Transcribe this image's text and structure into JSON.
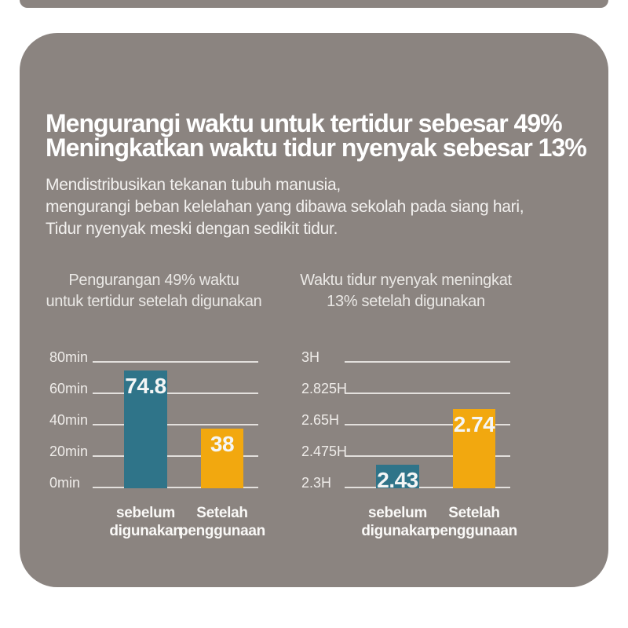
{
  "header": {
    "title_lines": [
      "Mengurangi waktu untuk tertidur sebesar 49%",
      "Meningkatkan waktu tidur nyenyak sebesar 13%"
    ],
    "subtitle_lines": [
      "Mendistribusikan tekanan tubuh manusia,",
      "mengurangi beban kelelahan yang dibawa sekolah pada siang hari,",
      "Tidur nyenyak meski dengan sedikit tidur."
    ]
  },
  "colors": {
    "card_background": "#8b8480",
    "before_bar": "#2f7489",
    "after_bar": "#f2a80f",
    "gridline": "#e3e0dd",
    "text": "#ffffff"
  },
  "chart_data": [
    {
      "type": "bar",
      "title": "Pengurangan 49% waktu untuk tertidur setelah digunakan",
      "title_lines": [
        "Pengurangan 49% waktu",
        "untuk tertidur setelah digunakan"
      ],
      "categories": [
        "sebelum digunakan",
        "Setelah penggunaan"
      ],
      "values": [
        74.8,
        38
      ],
      "value_labels": [
        "74.8",
        "38"
      ],
      "bar_colors": [
        "#2f7489",
        "#f2a80f"
      ],
      "yticks_top_to_bottom": [
        "80min",
        "60min",
        "40min",
        "20min",
        "0min"
      ],
      "ylim": [
        0,
        80
      ],
      "ylabel": "",
      "xlabel": "",
      "grid": true,
      "legend": false
    },
    {
      "type": "bar",
      "title": "Waktu tidur nyenyak meningkat 13% setelah digunakan",
      "title_lines": [
        "Waktu tidur nyenyak meningkat",
        "13% setelah digunakan"
      ],
      "categories": [
        "sebelum digunakan",
        "Setelah penggunaan"
      ],
      "values": [
        2.43,
        2.74
      ],
      "value_labels": [
        "2.43",
        "2.74"
      ],
      "bar_colors": [
        "#2f7489",
        "#f2a80f"
      ],
      "yticks_top_to_bottom": [
        "3H",
        "2.825H",
        "2.65H",
        "2.475H",
        "2.3H"
      ],
      "ylim": [
        2.3,
        3.0
      ],
      "ylabel": "",
      "xlabel": "",
      "grid": true,
      "legend": false
    }
  ]
}
